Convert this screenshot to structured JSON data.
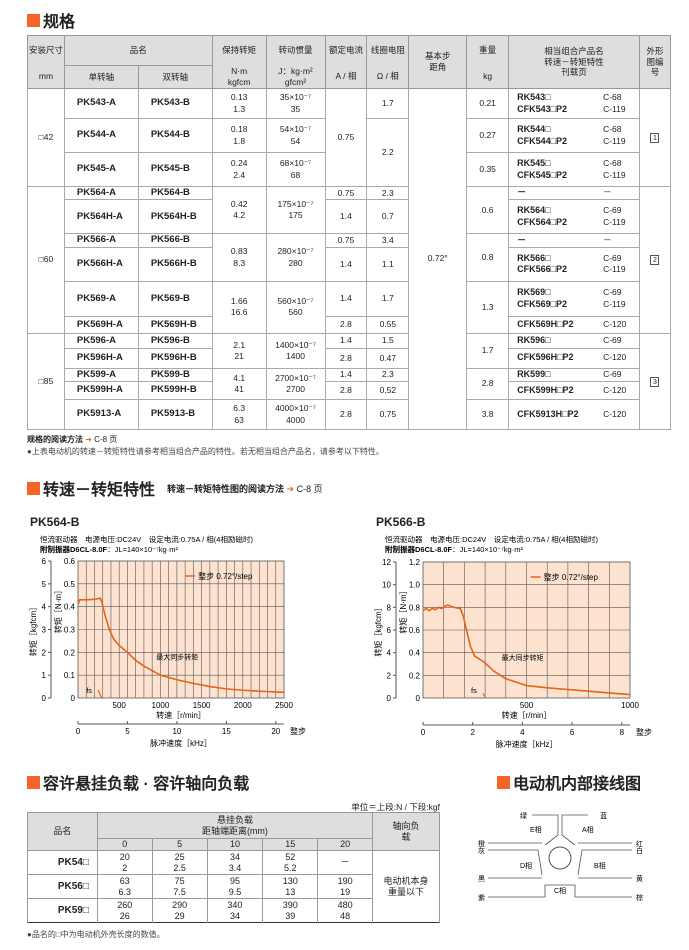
{
  "sections": {
    "spec": "规格",
    "speed_torque": "转速－转矩特性",
    "load": "容许悬挂负载 · 容许轴向负载",
    "wiring": "电动机内部接线图"
  },
  "speed_torque_link": {
    "text": "转速－转矩特性图的阅读方法",
    "arrow": "➜",
    "page": "C-8 页"
  },
  "spec": {
    "headers": {
      "size": "安装尺寸",
      "size_unit": "mm",
      "name": "品名",
      "single": "单转轴",
      "double": "双转轴",
      "torque": "保持转矩",
      "torque_unit1": "N·m",
      "torque_unit2": "kgfcm",
      "inertia": "转动惯量",
      "inertia_unit1": "J：kg·m²",
      "inertia_unit2": "gfcm²",
      "current": "额定电流",
      "current_unit": "A / 相",
      "resistance": "线圈电阻",
      "resistance_unit": "Ω / 相",
      "step": "基本步距角",
      "weight": "重量",
      "weight_unit": "kg",
      "combo": "相当组合产品名 转速－转矩特性 刊载页",
      "outline": "外形图编号"
    },
    "sizes": [
      "□42",
      "□60",
      "□85"
    ],
    "step_angle": "0.72°",
    "outlines": [
      "1",
      "2",
      "3"
    ],
    "rows": [
      {
        "single": "PK543-A",
        "double": "PK543-B"
      },
      {
        "single": "PK544-A",
        "double": "PK544-B"
      },
      {
        "single": "PK545-A",
        "double": "PK545-B"
      },
      {
        "single": "PK564-A",
        "double": "PK564-B"
      },
      {
        "single": "PK564H-A",
        "double": "PK564H-B"
      },
      {
        "single": "PK566-A",
        "double": "PK566-B"
      },
      {
        "single": "PK566H-A",
        "double": "PK566H-B"
      },
      {
        "single": "PK569-A",
        "double": "PK569-B"
      },
      {
        "single": "PK569H-A",
        "double": "PK569H-B"
      },
      {
        "single": "PK596-A",
        "double": "PK596-B"
      },
      {
        "single": "PK596H-A",
        "double": "PK596H-B"
      },
      {
        "single": "PK599-A",
        "double": "PK599-B"
      },
      {
        "single": "PK599H-A",
        "double": "PK599H-B"
      },
      {
        "single": "PK5913-A",
        "double": "PK5913-B"
      }
    ],
    "torque": [
      [
        "0.13",
        "1.3"
      ],
      [
        "0.18",
        "1.8"
      ],
      [
        "0.24",
        "2.4"
      ],
      [
        "0.42",
        "4.2"
      ],
      [
        "0.83",
        "8.3"
      ],
      [
        "1.66",
        "16.6"
      ],
      [
        "2.1",
        "21"
      ],
      [
        "4.1",
        "41"
      ],
      [
        "6.3",
        "63"
      ]
    ],
    "inertia": [
      [
        "35×10⁻⁷",
        "35"
      ],
      [
        "54×10⁻⁷",
        "54"
      ],
      [
        "68×10⁻⁷",
        "68"
      ],
      [
        "175×10⁻⁷",
        "175"
      ],
      [
        "280×10⁻⁷",
        "280"
      ],
      [
        "560×10⁻⁷",
        "560"
      ],
      [
        "1400×10⁻⁷",
        "1400"
      ],
      [
        "2700×10⁻⁷",
        "2700"
      ],
      [
        "4000×10⁻⁷",
        "4000"
      ]
    ],
    "current": [
      "0.75",
      "0.75",
      "1.4",
      "0.75",
      "1.4",
      "1.4",
      "2.8",
      "1.4",
      "2.8",
      "1.4",
      "2.8",
      "2.8"
    ],
    "resistance": [
      "1.7",
      "2.2",
      "2.3",
      "0.7",
      "3.4",
      "1.1",
      "1.7",
      "0.55",
      "1.5",
      "0.47",
      "2.3",
      "0.52",
      "0.75"
    ],
    "weight": [
      "0.21",
      "0.27",
      "0.35",
      "0.6",
      "0.8",
      "1.3",
      "1.7",
      "2.8",
      "3.8"
    ],
    "combo": [
      [
        [
          "RK543□",
          "C-68"
        ],
        [
          "CFK543□P2",
          "C-119"
        ]
      ],
      [
        [
          "RK544□",
          "C-68"
        ],
        [
          "CFK544□P2",
          "C-119"
        ]
      ],
      [
        [
          "RK545□",
          "C-68"
        ],
        [
          "CFK545□P2",
          "C-119"
        ]
      ],
      [
        [
          "－",
          "－"
        ]
      ],
      [
        [
          "RK564□",
          "C-69"
        ],
        [
          "CFK564□P2",
          "C-119"
        ]
      ],
      [
        [
          "－",
          "－"
        ]
      ],
      [
        [
          "RK566□",
          "C-69"
        ],
        [
          "CFK566□P2",
          "C-119"
        ]
      ],
      [
        [
          "RK569□",
          "C-69"
        ],
        [
          "CFK569□P2",
          "C-119"
        ]
      ],
      [
        [
          "CFK569H□P2",
          "C-120"
        ]
      ],
      [
        [
          "RK596□",
          "C-69"
        ]
      ],
      [
        [
          "CFK596H□P2",
          "C-120"
        ]
      ],
      [
        [
          "RK599□",
          "C-69"
        ]
      ],
      [
        [
          "CFK599H□P2",
          "C-120"
        ]
      ],
      [
        [
          "CFK5913H□P2",
          "C-120"
        ]
      ]
    ],
    "note_link": {
      "text": "规格的阅读方法",
      "arrow": "➜",
      "page": "C-8 页"
    },
    "note": "●上表电动机的转速－转矩特性请参考相当组合产品的特性。若无相当组合产品名，请参考以下特性。"
  },
  "chart_data": [
    {
      "type": "line",
      "title": "PK564-B",
      "conditions1": "恒流驱动器　电源电压:DC24V　设定电流:0.75A / 相(4相励磁时)",
      "conditions2_bold": "附制振器D6CL-8.0F",
      "conditions2": "：JL=140×10⁻⁷kg·m²",
      "xlabel": "转速［r/min］",
      "ylabel": "转矩［N·m］",
      "ylabel2": "转矩［kgfcm］",
      "x2label": "脉冲速度［kHz］",
      "x2unit": "整步",
      "xlim": [
        0,
        2500
      ],
      "ylim": [
        0,
        0.6
      ],
      "y2lim": [
        0,
        6
      ],
      "x2lim": [
        0,
        20.83
      ],
      "xticks": [
        "500",
        "1000",
        "1500",
        "2000",
        "2500"
      ],
      "yticks": [
        "0",
        "0.1",
        "0.2",
        "0.3",
        "0.4",
        "0.5",
        "0.6"
      ],
      "y2ticks": [
        "0",
        "1",
        "2",
        "3",
        "4",
        "5",
        "6"
      ],
      "x2ticks": [
        "0",
        "5",
        "10",
        "15",
        "20"
      ],
      "grid": true,
      "legend": "top-right",
      "series": [
        {
          "name": "整步 0.72°/step",
          "color": "#e4641c",
          "x": [
            0,
            20,
            100,
            200,
            270,
            290,
            330,
            380,
            430,
            500,
            600,
            700,
            800,
            1000,
            1200,
            1400,
            1600,
            1800,
            2000,
            2250,
            2500
          ],
          "y": [
            0.41,
            0.43,
            0.43,
            0.432,
            0.437,
            0.42,
            0.36,
            0.3,
            0.26,
            0.23,
            0.2,
            0.165,
            0.14,
            0.1,
            0.08,
            0.064,
            0.05,
            0.04,
            0.034,
            0.029,
            0.025
          ]
        }
      ],
      "annotations": {
        "curve": "最大同步转矩",
        "fs": "fs",
        "fs_x": [
          245,
          285
        ],
        "fs_y": [
          0.035,
          0
        ]
      }
    },
    {
      "type": "line",
      "title": "PK566-B",
      "conditions1": "恒流驱动器　电源电压:DC24V　设定电流:0.75A / 相(4相励磁时)",
      "conditions2_bold": "附制振器D6CL-8.0F",
      "conditions2": "：JL=140×10⁻⁷kg·m²",
      "xlabel": "转速［r/min］",
      "ylabel": "转矩［N·m］",
      "ylabel2": "转矩［kgfcm］",
      "x2label": "脉冲速度［kHz］",
      "x2unit": "整步",
      "xlim": [
        0,
        1000
      ],
      "ylim": [
        0,
        1.2
      ],
      "y2lim": [
        0,
        12
      ],
      "x2lim": [
        0,
        8.33
      ],
      "xticks": [
        "500",
        "1000"
      ],
      "yticks": [
        "0",
        "0.2",
        "0.4",
        "0.6",
        "0.8",
        "1.0",
        "1.2"
      ],
      "y2ticks": [
        "0",
        "2",
        "4",
        "6",
        "8",
        "10",
        "12"
      ],
      "x2ticks": [
        "0",
        "2",
        "4",
        "6",
        "8"
      ],
      "grid": true,
      "legend": "top-right",
      "series": [
        {
          "name": "整步 0.72°/step",
          "color": "#e4641c",
          "x": [
            0,
            15,
            30,
            45,
            60,
            75,
            90,
            105,
            120,
            150,
            180,
            195,
            210,
            230,
            250,
            300,
            340,
            400,
            500,
            600,
            700,
            800,
            900,
            1000
          ],
          "y": [
            0.77,
            0.79,
            0.77,
            0.79,
            0.78,
            0.8,
            0.79,
            0.81,
            0.82,
            0.8,
            0.79,
            0.72,
            0.6,
            0.45,
            0.37,
            0.31,
            0.24,
            0.17,
            0.11,
            0.09,
            0.075,
            0.06,
            0.045,
            0.03
          ]
        }
      ],
      "annotations": {
        "curve": "最大同步转矩",
        "fs": "fs",
        "fs_x": [
          290,
          302
        ],
        "fs_y": [
          0.04,
          0
        ]
      }
    }
  ],
  "load": {
    "unit": "单位＝上段:N / 下段:kgf",
    "headers": {
      "name": "品名",
      "radial": "悬挂负载",
      "distance": "距轴端距离(mm)",
      "axial": "轴向负载",
      "distances": [
        "0",
        "5",
        "10",
        "15",
        "20"
      ]
    },
    "rows": [
      {
        "name": "PK54□",
        "n": [
          "20",
          "25",
          "34",
          "52",
          "－"
        ],
        "kgf": [
          "2",
          "2.5",
          "3.4",
          "5.2",
          ""
        ]
      },
      {
        "name": "PK56□",
        "n": [
          "63",
          "75",
          "95",
          "130",
          "190"
        ],
        "kgf": [
          "6.3",
          "7.5",
          "9.5",
          "13",
          "19"
        ]
      },
      {
        "name": "PK59□",
        "n": [
          "260",
          "290",
          "340",
          "390",
          "480"
        ],
        "kgf": [
          "26",
          "29",
          "34",
          "39",
          "48"
        ]
      }
    ],
    "axial_value": "电动机本身重量以下",
    "note": "●品名的□中为电动机外壳长度的数值。"
  },
  "wiring": {
    "phases": [
      "A相",
      "B相",
      "C相",
      "D相",
      "E相"
    ],
    "wires": {
      "top_left": "绿",
      "top_right": "蓝",
      "left1": "橙",
      "left2": "灰",
      "right1": "红",
      "right2": "白",
      "left3": "黑",
      "right3": "黄",
      "bottom_left": "紫",
      "bottom_right": "棕"
    }
  },
  "colors": {
    "accent": "#f26522",
    "chart_bg": "#fde3cf",
    "curve": "#e4641c",
    "header_bg": "#dedede"
  }
}
